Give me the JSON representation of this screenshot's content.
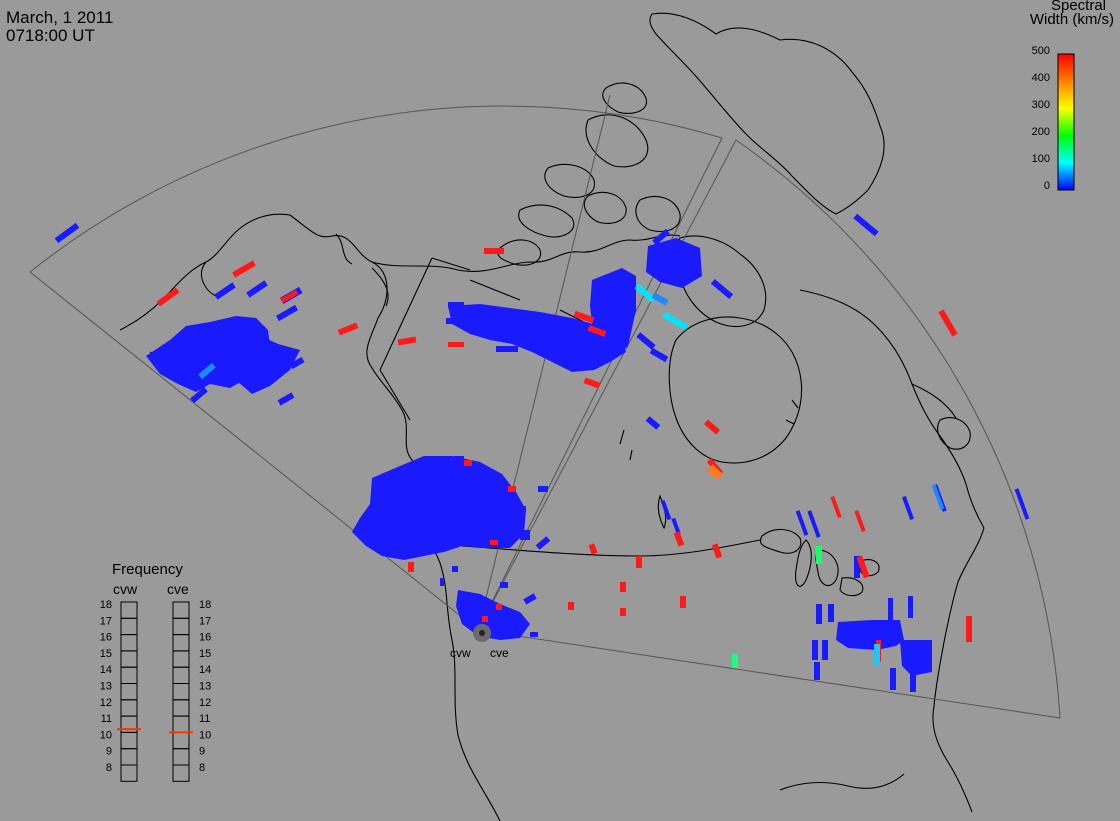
{
  "header": {
    "date": "March, 1 2011",
    "time": "0718:00 UT"
  },
  "legend": {
    "title_line1": "Spectral",
    "title_line2": "Width (km/s)",
    "ticks": [
      "500",
      "400",
      "300",
      "200",
      "100",
      "0"
    ],
    "colors": [
      "#ff0000",
      "#ff8000",
      "#ffff00",
      "#00ff00",
      "#00ffff",
      "#0000ff"
    ]
  },
  "frequency": {
    "title": "Frequency",
    "radars": [
      "cvw",
      "cve"
    ],
    "levels": [
      "18",
      "17",
      "16",
      "15",
      "14",
      "13",
      "12",
      "11",
      "10",
      "9",
      "8"
    ],
    "cvw_value": 10.7,
    "cve_value": 10.5
  },
  "radar_sites": [
    "cvw",
    "cve"
  ],
  "colors": {
    "background": "#9a9a9a",
    "scatter_blue": "#1a1aff",
    "scatter_red": "#ff1a1a",
    "coast": "#000000",
    "fov": "#555555"
  }
}
